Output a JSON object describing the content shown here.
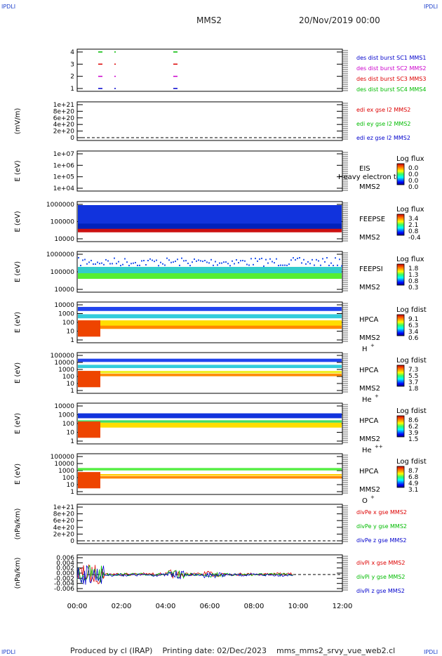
{
  "corner_label": "IPDLI",
  "header": {
    "title": "MMS2",
    "date": "20/Nov/2019 00:00"
  },
  "footer": {
    "produced_by": "Produced by cl (IRAP)",
    "printing_date": "Printing date: 02/Dec/2023",
    "filename": "mms_mms2_srvy_vue_web2.cl"
  },
  "colors": {
    "red": "#dd0000",
    "magenta": "#cc00cc",
    "green": "#00bb00",
    "blue": "#0000cc",
    "axis": "#000000"
  },
  "chart_data": [
    {
      "type": "line",
      "id": "p1",
      "yticks": [
        "4",
        "3",
        "2",
        "1"
      ],
      "legend": [
        {
          "text": "des dist burst SC1 MMS1",
          "color": "#0000cc"
        },
        {
          "text": "des dist burst SC2 MMS2",
          "color": "#cc00cc"
        },
        {
          "text": "des dist burst SC3 MMS3",
          "color": "#dd0000"
        },
        {
          "text": "des dist burst SC4 MMS4",
          "color": "#00bb00"
        }
      ]
    },
    {
      "type": "line",
      "id": "p2",
      "ylabel": "(mV/m)",
      "yticks": [
        "1e+21",
        "8e+20",
        "6e+20",
        "4e+20",
        "2e+20",
        "0"
      ],
      "legend": [
        {
          "text": "edi ex gse l2 MMS2",
          "color": "#dd0000"
        },
        {
          "text": "edi ey gse l2 MMS2",
          "color": "#00bb00"
        },
        {
          "text": "edi ez gse l2 MMS2",
          "color": "#0000cc"
        }
      ]
    },
    {
      "type": "heatmap",
      "id": "p3",
      "ylabel": "E (eV)",
      "yticks": [
        "1e+07",
        "1e+06",
        "1e+05",
        "1e+04"
      ],
      "instrument": "EIS",
      "sc": "MMS2",
      "species": "",
      "extra": "Heavy electron to",
      "cbar_title": "Log flux",
      "cbar_ticks": [
        "0.0",
        "0.0",
        "0.0",
        "0.0"
      ]
    },
    {
      "type": "heatmap",
      "id": "p4",
      "ylabel": "E (eV)",
      "yticks": [
        "1000000",
        "100000",
        "10000"
      ],
      "instrument": "FEEPSE",
      "sc": "MMS2",
      "species": "",
      "cbar_title": "Log flux",
      "cbar_ticks": [
        "3.4",
        "2.1",
        "0.8",
        "-0.4"
      ]
    },
    {
      "type": "heatmap",
      "id": "p5",
      "ylabel": "E (eV)",
      "yticks": [
        "1000000",
        "100000",
        "10000"
      ],
      "instrument": "FEEPSI",
      "sc": "MMS2",
      "species": "",
      "cbar_title": "Log flux",
      "cbar_ticks": [
        "1.8",
        "1.3",
        "0.8",
        "0.3"
      ]
    },
    {
      "type": "heatmap",
      "id": "p6",
      "ylabel": "E (eV)",
      "yticks": [
        "10000",
        "1000",
        "100",
        "10",
        "1"
      ],
      "instrument": "HPCA",
      "sc": "MMS2",
      "species": "H",
      "species_sup": "+",
      "cbar_title": "Log fdist",
      "cbar_ticks": [
        "9.1",
        "6.3",
        "3.4",
        "0.6"
      ]
    },
    {
      "type": "heatmap",
      "id": "p7",
      "ylabel": "E (eV)",
      "yticks": [
        "100000",
        "10000",
        "1000",
        "100",
        "10",
        "1"
      ],
      "instrument": "HPCA",
      "sc": "MMS2",
      "species": "He",
      "species_sup": "+",
      "cbar_title": "Log fdist",
      "cbar_ticks": [
        "7.3",
        "5.5",
        "3.7",
        "1.8"
      ]
    },
    {
      "type": "heatmap",
      "id": "p8",
      "ylabel": "E (eV)",
      "yticks": [
        "10000",
        "1000",
        "100",
        "10",
        "1"
      ],
      "instrument": "HPCA",
      "sc": "MMS2",
      "species": "He",
      "species_sup": "++",
      "cbar_title": "Log fdist",
      "cbar_ticks": [
        "8.6",
        "6.2",
        "3.9",
        "1.5"
      ]
    },
    {
      "type": "heatmap",
      "id": "p9",
      "ylabel": "E (eV)",
      "yticks": [
        "100000",
        "10000",
        "1000",
        "100",
        "10",
        "1"
      ],
      "instrument": "HPCA",
      "sc": "MMS2",
      "species": "O",
      "species_sup": "+",
      "cbar_title": "Log fdist",
      "cbar_ticks": [
        "8.7",
        "6.8",
        "4.9",
        "3.1"
      ]
    },
    {
      "type": "line",
      "id": "p10",
      "ylabel": "(nPa/km)",
      "yticks": [
        "1e+21",
        "8e+20",
        "6e+20",
        "4e+20",
        "2e+20",
        "0"
      ],
      "legend": [
        {
          "text": "divPe x gse MMS2",
          "color": "#dd0000"
        },
        {
          "text": "divPe y gse MMS2",
          "color": "#00bb00"
        },
        {
          "text": "divPe z gse MMS2",
          "color": "#0000cc"
        }
      ]
    },
    {
      "type": "line",
      "id": "p11",
      "ylabel": "(nPa/km)",
      "yticks": [
        "0.006",
        "0.004",
        "0.002",
        "0.000",
        "-0.002",
        "-0.004",
        "-0.006"
      ],
      "legend": [
        {
          "text": "divPi x gse MMS2",
          "color": "#dd0000"
        },
        {
          "text": "divPi y gse MMS2",
          "color": "#00bb00"
        },
        {
          "text": "divPi z gse MMS2",
          "color": "#0000cc"
        }
      ]
    }
  ],
  "x_axis": {
    "ticks": [
      "00:00",
      "02:00",
      "04:00",
      "06:00",
      "08:00",
      "10:00",
      "12:00"
    ]
  }
}
